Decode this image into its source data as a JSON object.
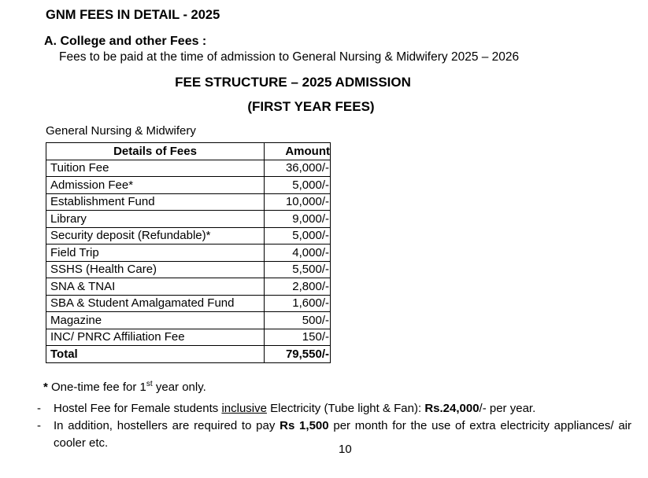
{
  "doc": {
    "title": "GNM FEES IN DETAIL - 2025",
    "section_heading": "A. College and other Fees :",
    "section_subtext": "Fees to be paid at the time of admission to General Nursing & Midwifery 2025 – 2026",
    "fee_structure_heading": "FEE STRUCTURE – 2025 ADMISSION",
    "first_year_heading": "(FIRST YEAR FEES)",
    "table_caption": "General Nursing & Midwifery",
    "page_number": "10"
  },
  "fee_table": {
    "columns": [
      "Details of Fees",
      "Amount"
    ],
    "rows": [
      {
        "detail": "Tuition Fee",
        "amount": "36,000/-"
      },
      {
        "detail": "Admission Fee*",
        "amount": "5,000/-"
      },
      {
        "detail": "Establishment Fund",
        "amount": "10,000/-"
      },
      {
        "detail": "Library",
        "amount": "9,000/-"
      },
      {
        "detail": "Security deposit (Refundable)*",
        "amount": "5,000/-"
      },
      {
        "detail": "Field Trip",
        "amount": "4,000/-"
      },
      {
        "detail": "SSHS (Health Care)",
        "amount": "5,500/-"
      },
      {
        "detail": "SNA & TNAI",
        "amount": "2,800/-"
      },
      {
        "detail": "SBA & Student Amalgamated Fund",
        "amount": "1,600/-"
      },
      {
        "detail": "Magazine",
        "amount": "500/-"
      },
      {
        "detail": "INC/ PNRC Affiliation Fee",
        "amount": "150/-"
      }
    ],
    "total_row": {
      "detail": "Total",
      "amount": "79,550/-"
    }
  },
  "notes": {
    "one_time": {
      "marker": "*",
      "pre": " One-time fee for 1",
      "sup": "st",
      "post": " year only."
    },
    "bullets": [
      {
        "marker": "-",
        "pre": "Hostel Fee for Female students ",
        "underlined": "inclusive",
        "mid": " Electricity (Tube light & Fan): ",
        "bold": "Rs.24,000",
        "post": "/- per year."
      },
      {
        "marker": "-",
        "pre": "In addition, hostellers are required to pay ",
        "bold": "Rs 1,500",
        "post": " per month for the use of extra electricity appliances/ air cooler etc."
      }
    ]
  }
}
